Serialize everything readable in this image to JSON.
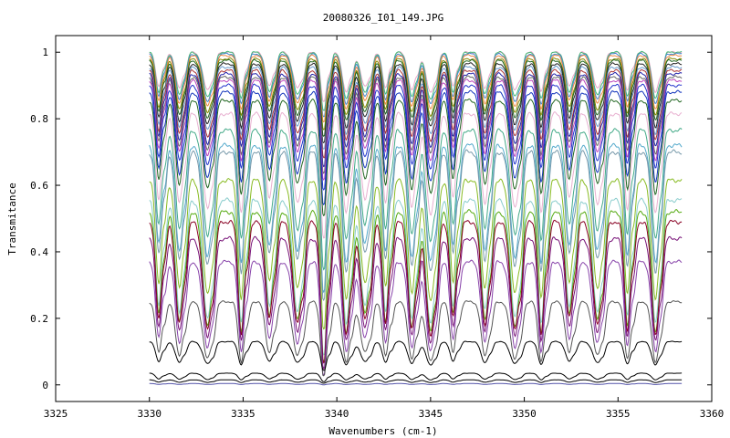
{
  "chart_data": {
    "type": "line",
    "title": "20080326_I01_149.JPG",
    "xlabel": "Wavenumbers (cm-1)",
    "ylabel": "Transmitance",
    "xlim": [
      3325,
      3360
    ],
    "ylim": [
      -0.05,
      1.05
    ],
    "x_ticks": [
      3325,
      3330,
      3335,
      3340,
      3345,
      3350,
      3355,
      3360
    ],
    "x_tick_labels": [
      "3325",
      "3330",
      "3335",
      "3340",
      "3345",
      "3350",
      "3355",
      "3360"
    ],
    "y_ticks": [
      0,
      0.2,
      0.4,
      0.6,
      0.8,
      1
    ],
    "y_tick_labels": [
      "0",
      "0.2",
      "0.4",
      "0.6",
      "0.8",
      "1"
    ],
    "grid": false,
    "legend": "none",
    "x_range_data": [
      3330,
      3358.4
    ],
    "absorption_line_centers": [
      3330.5,
      3331.6,
      3333.1,
      3334.9,
      3336.4,
      3337.9,
      3339.3,
      3340.5,
      3341.5,
      3342.6,
      3344.0,
      3345.0,
      3346.2,
      3347.9,
      3349.5,
      3350.9,
      3352.4,
      3353.9,
      3355.5,
      3357.0
    ],
    "series": [
      {
        "baseline": 1.0,
        "dip": 0.12,
        "color": "#e8a4c8"
      },
      {
        "baseline": 1.0,
        "dip": 0.14,
        "color": "#44bb77"
      },
      {
        "baseline": 0.995,
        "dip": 0.15,
        "color": "#4488cc"
      },
      {
        "baseline": 0.99,
        "dip": 0.16,
        "color": "#ee8844"
      },
      {
        "baseline": 0.98,
        "dip": 0.17,
        "color": "#888800"
      },
      {
        "baseline": 0.975,
        "dip": 0.18,
        "color": "#226622"
      },
      {
        "baseline": 0.965,
        "dip": 0.19,
        "color": "#222222"
      },
      {
        "baseline": 0.955,
        "dip": 0.2,
        "color": "#6699cc"
      },
      {
        "baseline": 0.945,
        "dip": 0.21,
        "color": "#aa3333"
      },
      {
        "baseline": 0.935,
        "dip": 0.22,
        "color": "#2222aa"
      },
      {
        "baseline": 0.925,
        "dip": 0.23,
        "color": "#666666"
      },
      {
        "baseline": 0.915,
        "dip": 0.24,
        "color": "#bb44bb"
      },
      {
        "baseline": 0.9,
        "dip": 0.25,
        "color": "#2233cc"
      },
      {
        "baseline": 0.88,
        "dip": 0.27,
        "color": "#1133bb"
      },
      {
        "baseline": 0.855,
        "dip": 0.28,
        "color": "#226622"
      },
      {
        "baseline": 0.815,
        "dip": 0.3,
        "color": "#e8b0d0"
      },
      {
        "baseline": 0.765,
        "dip": 0.33,
        "color": "#44aa88"
      },
      {
        "baseline": 0.72,
        "dip": 0.35,
        "color": "#55aacc"
      },
      {
        "baseline": 0.7,
        "dip": 0.36,
        "color": "#7799aa"
      },
      {
        "baseline": 0.615,
        "dip": 0.36,
        "color": "#88bb22"
      },
      {
        "baseline": 0.555,
        "dip": 0.37,
        "color": "#88cccc"
      },
      {
        "baseline": 0.52,
        "dip": 0.36,
        "color": "#55aa11"
      },
      {
        "baseline": 0.49,
        "dip": 0.34,
        "color": "#880022"
      },
      {
        "baseline": 0.44,
        "dip": 0.31,
        "color": "#771177"
      },
      {
        "baseline": 0.37,
        "dip": 0.27,
        "color": "#8844aa"
      },
      {
        "baseline": 0.25,
        "dip": 0.18,
        "color": "#555555"
      },
      {
        "baseline": 0.13,
        "dip": 0.07,
        "color": "#000000"
      },
      {
        "baseline": 0.035,
        "dip": 0.02,
        "color": "#000000"
      },
      {
        "baseline": 0.015,
        "dip": 0.008,
        "color": "#000000"
      },
      {
        "baseline": 0.004,
        "dip": 0.003,
        "color": "#5555aa"
      }
    ]
  }
}
